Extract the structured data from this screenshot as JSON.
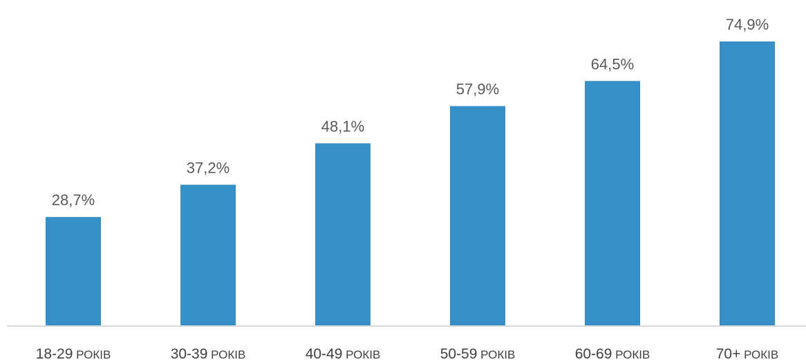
{
  "chart_data": {
    "type": "bar",
    "categories": [
      {
        "range": "18-29",
        "unit": "РОКІВ"
      },
      {
        "range": "30-39",
        "unit": "РОКІВ"
      },
      {
        "range": "40-49",
        "unit": "РОКІВ"
      },
      {
        "range": "50-59",
        "unit": "РОКІВ"
      },
      {
        "range": "60-69",
        "unit": "РОКІВ"
      },
      {
        "range": "70+",
        "unit": "РОКІВ"
      }
    ],
    "values": [
      28.7,
      37.2,
      48.1,
      57.9,
      64.5,
      74.9
    ],
    "value_labels": [
      "28,7%",
      "37,2%",
      "48,1%",
      "57,9%",
      "64,5%",
      "74,9%"
    ],
    "title": "",
    "xlabel": "",
    "ylabel": "",
    "ylim": [
      0,
      100
    ],
    "grid": false,
    "bar_color": "#3490c6",
    "axis_color": "#d9d9d9"
  }
}
